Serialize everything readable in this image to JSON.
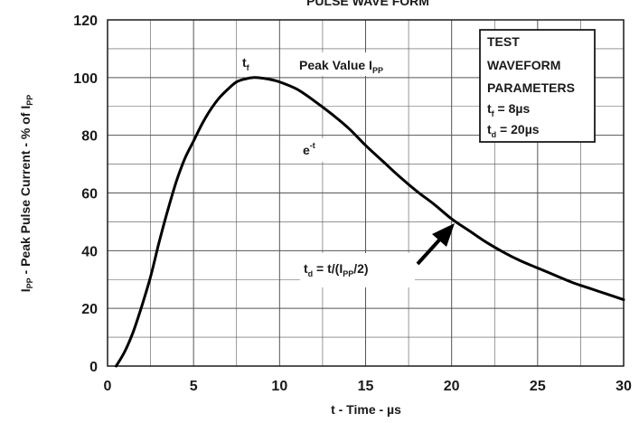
{
  "chart_data": {
    "type": "line",
    "title": "PULSE WAVE FORM",
    "xlabel": "t - Time - µs",
    "ylabel": {
      "pre": "I",
      "sub": "PP",
      "mid": " - Peak Pulse Current - % of I",
      "sub2": "PP"
    },
    "xlim": [
      0,
      30
    ],
    "ylim": [
      0,
      120
    ],
    "xticks": [
      0,
      5,
      10,
      15,
      20,
      25,
      30
    ],
    "yticks": [
      0,
      20,
      40,
      60,
      80,
      100,
      120
    ],
    "grid": true,
    "series": [
      {
        "x": [
          0.5,
          1,
          1.5,
          2,
          2.5,
          3,
          3.5,
          4,
          4.5,
          5,
          5.5,
          6,
          6.5,
          7,
          7.5,
          8,
          8.5,
          9,
          9.5,
          10,
          11,
          12,
          13,
          14,
          15,
          16,
          17,
          18,
          19,
          20,
          21,
          22,
          23,
          24,
          25,
          26,
          27,
          28,
          29,
          30
        ],
        "y": [
          0,
          5,
          12,
          21,
          31,
          43,
          54,
          64,
          72,
          78,
          84,
          89,
          93,
          96,
          98.5,
          99.5,
          100,
          99.8,
          99.3,
          98.5,
          96,
          92,
          87.5,
          82.5,
          76.5,
          71,
          65.5,
          60.5,
          56,
          51,
          47,
          43,
          39.5,
          36.5,
          34,
          31.5,
          29,
          27,
          25,
          23
        ]
      }
    ],
    "annotations": {
      "tf": {
        "main": "t",
        "sub": "f"
      },
      "peak": {
        "main": "Peak Value I",
        "sub": "PP"
      },
      "exp": {
        "main": "e",
        "sup": "-t"
      },
      "td": {
        "a": "t",
        "a_sub": "d",
        "b": " = t/(I",
        "b_sub": "PP",
        "c": "/2)"
      }
    },
    "legend_box": {
      "line1": "TEST",
      "line2": "WAVEFORM",
      "line3": "PARAMETERS",
      "tf": {
        "main": "t",
        "sub": "f",
        "rest": " = 8µs"
      },
      "td": {
        "main": "t",
        "sub": "d",
        "rest": " = 20µs"
      }
    },
    "line_color": "#000000",
    "grid_color": "#555555"
  }
}
